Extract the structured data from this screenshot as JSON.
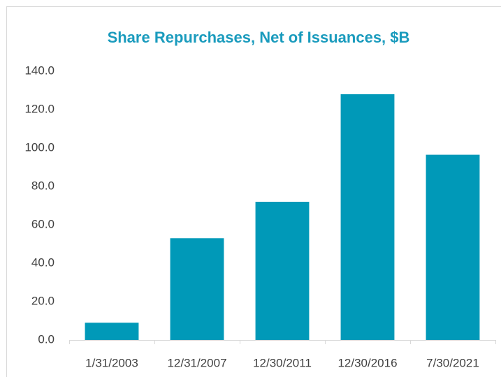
{
  "chart_data": {
    "type": "bar",
    "title": "Share Repurchases, Net of Issuances, $B",
    "categories": [
      "1/31/2003",
      "12/31/2007",
      "12/30/2011",
      "12/30/2016",
      "7/30/2021"
    ],
    "values": [
      9,
      53,
      72,
      128,
      96.5
    ],
    "color": "#0099b8",
    "ylim": [
      0,
      140
    ],
    "yticks": [
      {
        "value": 0,
        "label": "0.0"
      },
      {
        "value": 20,
        "label": "20.0"
      },
      {
        "value": 40,
        "label": "40.0"
      },
      {
        "value": 60,
        "label": "60.0"
      },
      {
        "value": 80,
        "label": "80.0"
      },
      {
        "value": 100,
        "label": "100.0"
      },
      {
        "value": 120,
        "label": "120.0"
      },
      {
        "value": 140,
        "label": "140.0"
      }
    ],
    "grid": false
  }
}
